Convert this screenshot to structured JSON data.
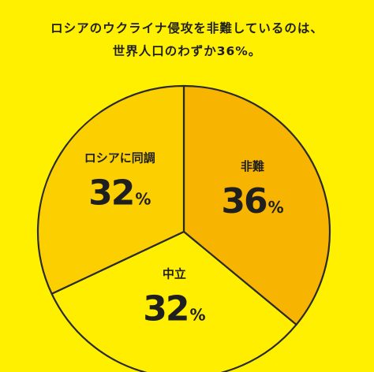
{
  "title_lines": [
    "ロシアのウクライナ侵攻を非難しているのは、",
    "世界人口のわずか36%。"
  ],
  "chart_data": {
    "type": "pie",
    "unit": "%",
    "slices": [
      {
        "label": "非難",
        "value": 36,
        "color": "#F7B400"
      },
      {
        "label": "中立",
        "value": 32,
        "color": "#FFEE00"
      },
      {
        "label": "ロシアに同調",
        "value": 32,
        "color": "#FCD000"
      }
    ]
  }
}
